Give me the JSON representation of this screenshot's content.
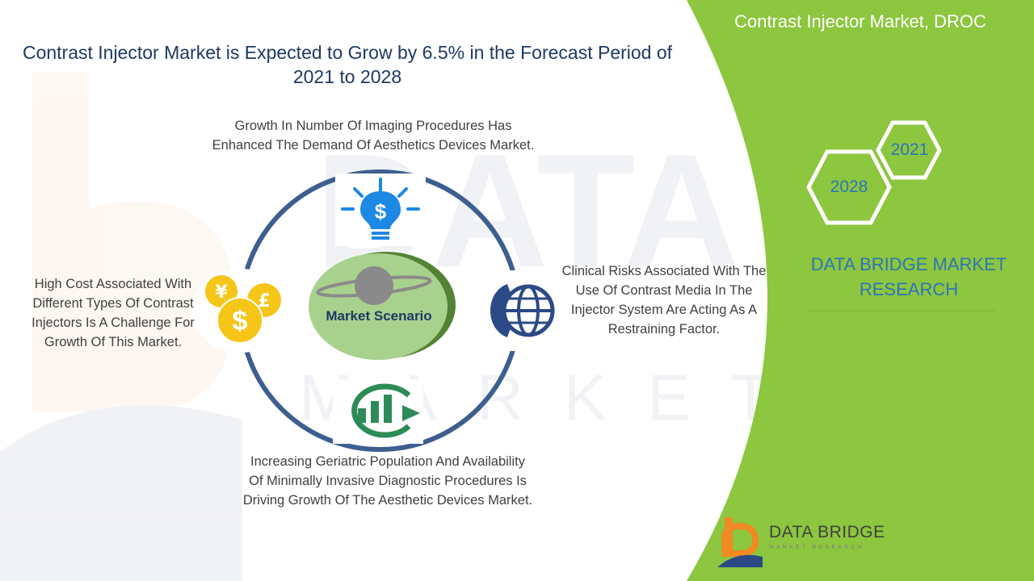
{
  "title": "Contrast Injector Market is Expected to Grow by 6.5% in the Forecast Period of 2021 to 2028",
  "header_label": "Contrast Injector Market, DROC",
  "years": {
    "start": "2021",
    "end": "2028"
  },
  "brand_text": "DATA BRIDGE MARKET RESEARCH",
  "center_label": "Market Scenario",
  "drivers": {
    "top": "Growth In Number Of Imaging Procedures Has Enhanced The Demand Of Aesthetics Devices Market.",
    "right": "Clinical Risks Associated With The Use Of Contrast Media In The Injector System Are Acting As A Restraining Factor.",
    "bottom": "Increasing Geriatric Population And Availability Of Minimally Invasive Diagnostic Procedures Is Driving Growth Of The Aesthetic Devices Market.",
    "left": "High Cost Associated With Different Types Of Contrast Injectors Is A Challenge For Growth Of This Market."
  },
  "logo": {
    "name": "DATA BRIDGE",
    "tagline": "MARKET RESEARCH"
  },
  "icons": {
    "top": "lightbulb-dollar-icon",
    "right": "phone-globe-icon",
    "bottom": "bar-chart-growth-icon",
    "left": "currency-coins-icon"
  },
  "colors": {
    "panel_green": "#8dc63f",
    "ring_blue": "#3d5f8f",
    "accent_blue": "#1e88e5",
    "text_blue": "#2e75b6",
    "title_navy": "#1f3864",
    "center_green": "#a9d18e",
    "icon_green": "#2e8b57",
    "coin_yellow": "#f5c518",
    "logo_orange": "#f08a24"
  }
}
